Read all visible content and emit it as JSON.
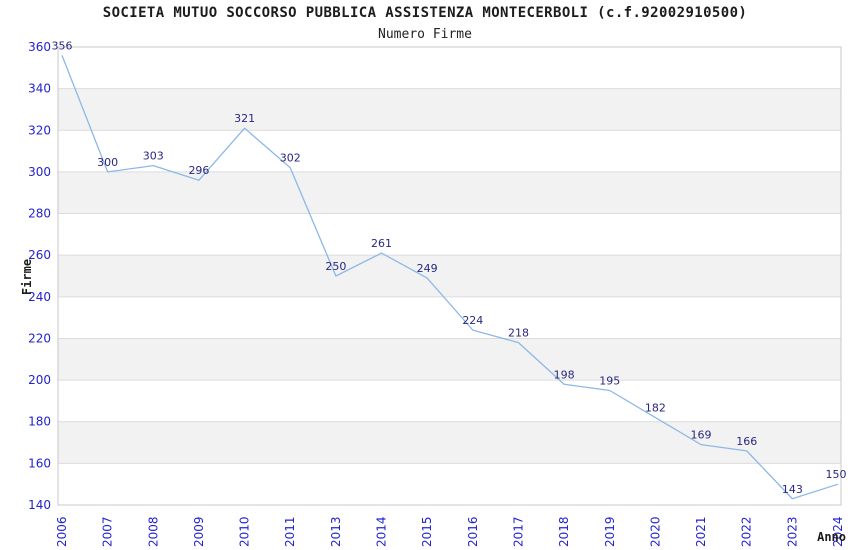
{
  "chart_data": {
    "type": "line",
    "title": "SOCIETA MUTUO SOCCORSO PUBBLICA ASSISTENZA MONTECERBOLI (c.f.92002910500)",
    "subtitle": "Numero Firme",
    "xlabel": "Anno",
    "ylabel": "Firme",
    "categories": [
      "2006",
      "2007",
      "2008",
      "2009",
      "2010",
      "2011",
      "2013",
      "2014",
      "2015",
      "2016",
      "2017",
      "2018",
      "2019",
      "2020",
      "2021",
      "2022",
      "2023",
      "2024"
    ],
    "values": [
      356,
      300,
      303,
      296,
      321,
      302,
      250,
      261,
      249,
      224,
      218,
      198,
      195,
      182,
      169,
      166,
      143,
      150
    ],
    "ylim": [
      140,
      360
    ],
    "ytick_step": 20,
    "yticks": [
      140,
      160,
      180,
      200,
      220,
      240,
      260,
      280,
      300,
      320,
      340,
      360
    ],
    "grid": "horizontal-bands",
    "legend": "none",
    "point_labels_visible": true,
    "x_tick_rotation_degrees": -90,
    "colors": {
      "line": "#8db8e8",
      "point_label": "#282882",
      "tick_label": "#2323d2",
      "band_fill": "#f2f2f2",
      "gridline": "#dcdcdc",
      "plot_border": "#c8c8c8",
      "title": "#1c1c1c",
      "axis_title": "#1c1c1c",
      "background": "#ffffff"
    }
  }
}
